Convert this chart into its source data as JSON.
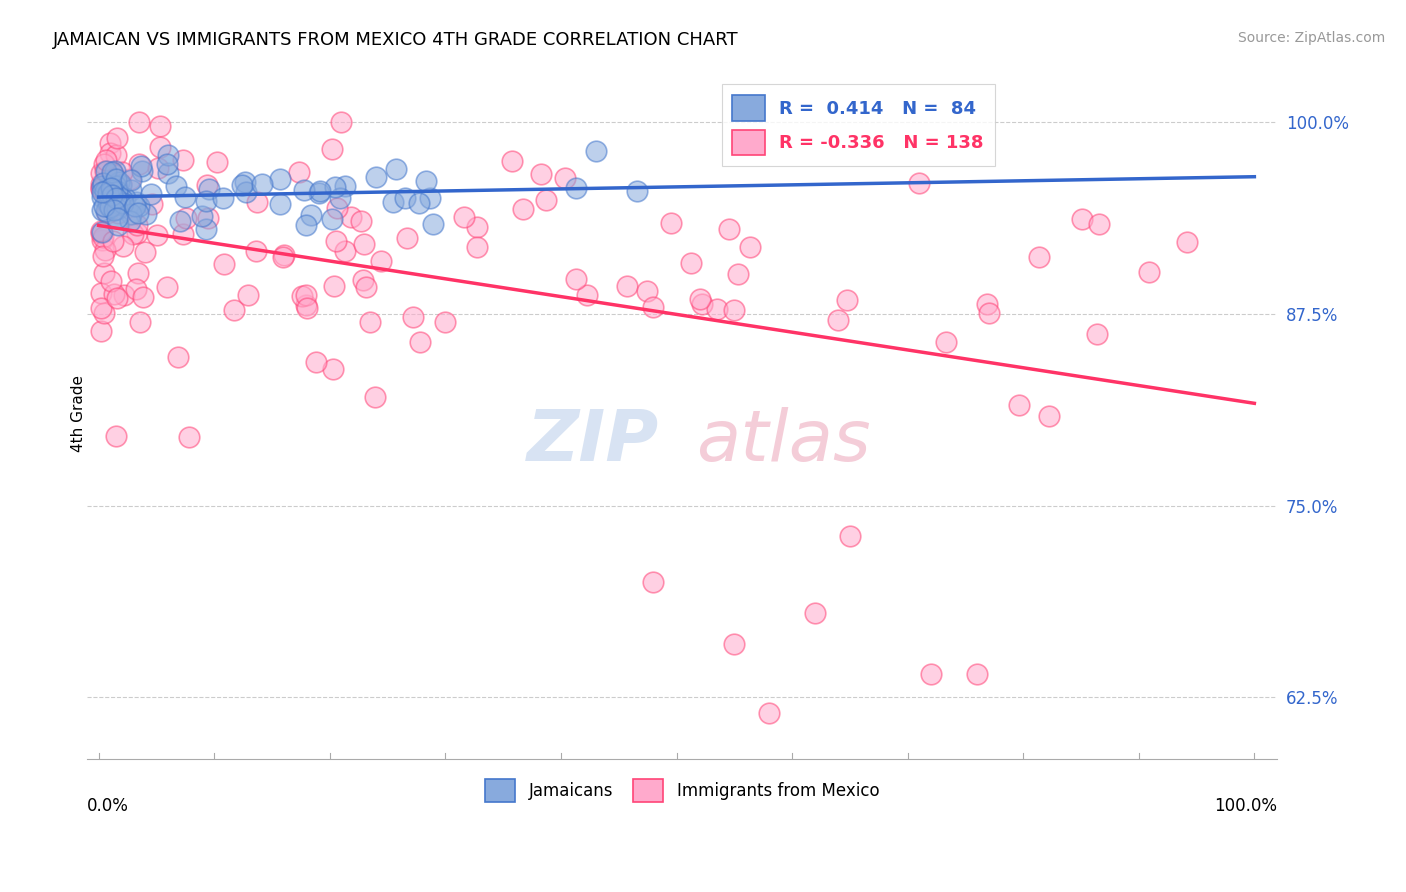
{
  "title": "JAMAICAN VS IMMIGRANTS FROM MEXICO 4TH GRADE CORRELATION CHART",
  "source": "Source: ZipAtlas.com",
  "ylabel": "4th Grade",
  "ytick_labels": [
    "62.5%",
    "75.0%",
    "87.5%",
    "100.0%"
  ],
  "ytick_values": [
    0.625,
    0.75,
    0.875,
    1.0
  ],
  "blue_color": "#88AADD",
  "blue_edge": "#4477CC",
  "pink_color": "#FFAACC",
  "pink_edge": "#FF4477",
  "trendline_blue": "#3366CC",
  "trendline_pink": "#FF3366",
  "blue_R": 0.414,
  "blue_N": 84,
  "pink_R": -0.336,
  "pink_N": 138,
  "ymin": 0.585,
  "ymax": 1.035,
  "xmin": -0.01,
  "xmax": 1.02
}
